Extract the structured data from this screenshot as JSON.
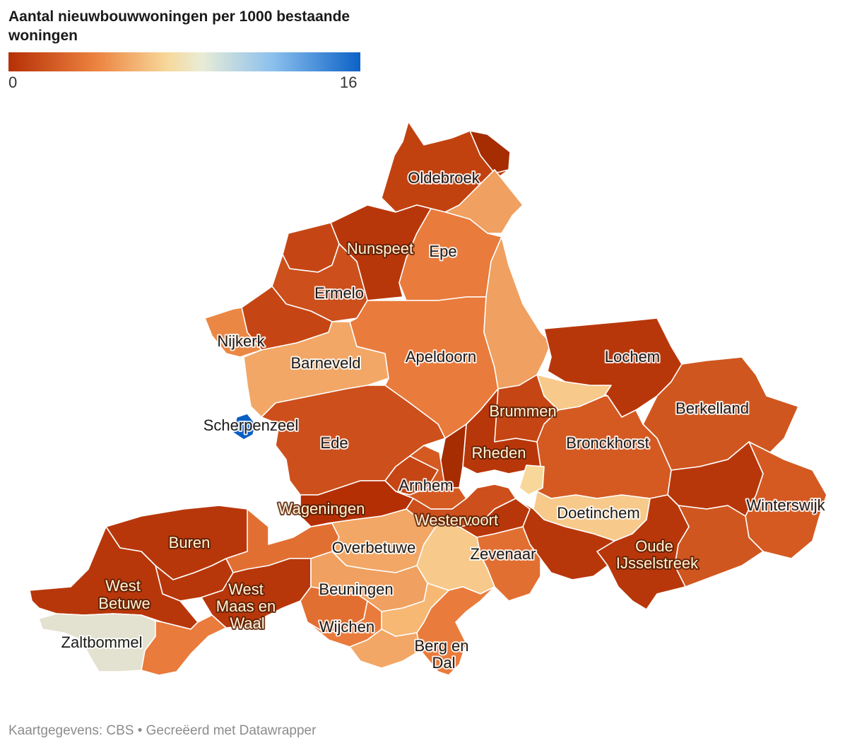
{
  "title": "Aantal nieuwbouwwoningen per 1000 bestaande woningen",
  "legend": {
    "min": "0",
    "max": "16"
  },
  "colors": {
    "darkest": "#a62c02",
    "dark": "#b8370a",
    "mid_dark": "#cc4f1c",
    "mid": "#e26f32",
    "light": "#f0a060",
    "pale": "#f7c98a",
    "neutral": "#e3e1cf",
    "blue": "#0a5fc4"
  },
  "municipalities": [
    "Oldebroek",
    "Nunspeet",
    "Epe",
    "Ermelo",
    "Nijkerk",
    "Barneveld",
    "Apeldoorn",
    "Lochem",
    "Berkelland",
    "Brummen",
    "Scherpenzeel",
    "Ede",
    "Bronckhorst",
    "Rheden",
    "Arnhem",
    "Winterswijk",
    "Wageningen",
    "Westervoort",
    "Doetinchem",
    "Buren",
    "Overbetuwe",
    "Zevenaar",
    "Oude IJsselstreek",
    "West Betuwe",
    "West Maas en Waal",
    "Beuningen",
    "Wijchen",
    "Zaltbommel",
    "Berg en Dal"
  ],
  "credit": "Kaartgegevens: CBS • Gecreëerd met Datawrapper"
}
